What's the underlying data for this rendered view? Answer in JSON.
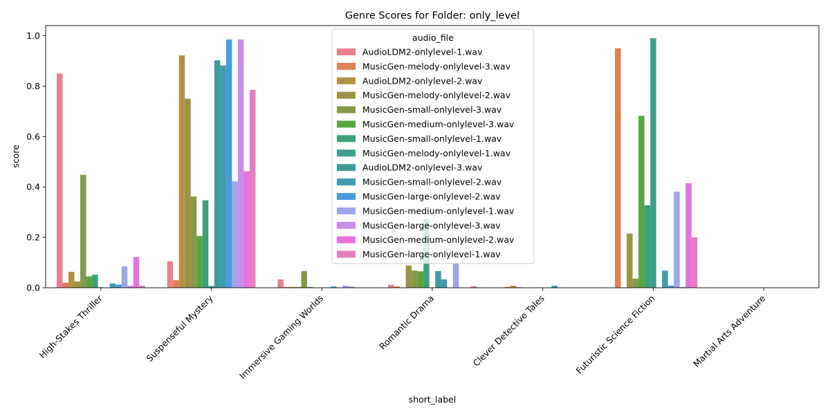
{
  "chart_data": {
    "type": "bar",
    "title": "Genre Scores for Folder: only_level",
    "xlabel": "short_label",
    "ylabel": "score",
    "ylim": [
      0,
      1.04
    ],
    "yticks": [
      0.0,
      0.2,
      0.4,
      0.6,
      0.8,
      1.0
    ],
    "ytick_labels": [
      "0.0",
      "0.2",
      "0.4",
      "0.6",
      "0.8",
      "1.0"
    ],
    "grid": false,
    "legend": {
      "title": "audio_file",
      "placement": "upper-center"
    },
    "categories": [
      "High-Stakes Thriller",
      "Suspenseful Mystery",
      "Immersive Gaming Worlds",
      "Romantic Drama",
      "Clever Detective Tales",
      "Futuristic Science Fiction",
      "Martial Arts Adventure"
    ],
    "series": [
      {
        "name": "AudioLDM2-onlylevel-1.wav",
        "color": "#e8808f",
        "values": [
          0.85,
          0.105,
          0.033,
          0.012,
          0.0,
          0.0,
          0.0
        ]
      },
      {
        "name": "MusicGen-melody-onlylevel-3.wav",
        "color": "#df8151",
        "values": [
          0.02,
          0.03,
          0.003,
          0.005,
          0.003,
          0.95,
          0.0
        ]
      },
      {
        "name": "AudioLDM2-onlylevel-2.wav",
        "color": "#b59148",
        "values": [
          0.063,
          0.922,
          0.003,
          0.0,
          0.008,
          0.0,
          0.0
        ]
      },
      {
        "name": "MusicGen-melody-onlylevel-2.wav",
        "color": "#9c9443",
        "values": [
          0.025,
          0.75,
          0.003,
          0.088,
          0.002,
          0.215,
          0.0
        ]
      },
      {
        "name": "MusicGen-small-onlylevel-3.wav",
        "color": "#86994a",
        "values": [
          0.448,
          0.362,
          0.066,
          0.068,
          0.0,
          0.036,
          0.0
        ]
      },
      {
        "name": "MusicGen-medium-onlylevel-3.wav",
        "color": "#59a43f",
        "values": [
          0.045,
          0.205,
          0.003,
          0.065,
          0.0,
          0.682,
          0.0
        ]
      },
      {
        "name": "MusicGen-small-onlylevel-1.wav",
        "color": "#3ca27a",
        "values": [
          0.052,
          0.347,
          0.0,
          0.272,
          0.0,
          0.327,
          0.0
        ]
      },
      {
        "name": "MusicGen-melody-onlylevel-1.wav",
        "color": "#3c9e8d",
        "values": [
          0.002,
          0.007,
          0.0,
          0.0,
          0.0,
          0.99,
          0.0
        ]
      },
      {
        "name": "AudioLDM2-onlylevel-3.wav",
        "color": "#3f9c9a",
        "values": [
          0.0,
          0.902,
          0.0,
          0.066,
          0.0,
          0.0,
          0.0
        ]
      },
      {
        "name": "MusicGen-small-onlylevel-2.wav",
        "color": "#3f9bb0",
        "values": [
          0.017,
          0.882,
          0.005,
          0.033,
          0.008,
          0.068,
          0.0
        ]
      },
      {
        "name": "MusicGen-large-onlylevel-2.wav",
        "color": "#4a9cdc",
        "values": [
          0.012,
          0.985,
          0.0,
          0.0,
          0.0,
          0.008,
          0.0
        ]
      },
      {
        "name": "MusicGen-medium-onlylevel-1.wav",
        "color": "#9da6e9",
        "values": [
          0.085,
          0.422,
          0.008,
          0.097,
          0.0,
          0.381,
          0.0
        ]
      },
      {
        "name": "MusicGen-large-onlylevel-3.wav",
        "color": "#c98ee8",
        "values": [
          0.008,
          0.985,
          0.005,
          0.0,
          0.0,
          0.003,
          0.0
        ]
      },
      {
        "name": "MusicGen-medium-onlylevel-2.wav",
        "color": "#e771e1",
        "values": [
          0.122,
          0.462,
          0.0,
          0.0,
          0.0,
          0.415,
          0.0
        ]
      },
      {
        "name": "MusicGen-large-onlylevel-1.wav",
        "color": "#e77fbe",
        "values": [
          0.008,
          0.785,
          0.0,
          0.006,
          0.0,
          0.2,
          0.0
        ]
      }
    ]
  }
}
